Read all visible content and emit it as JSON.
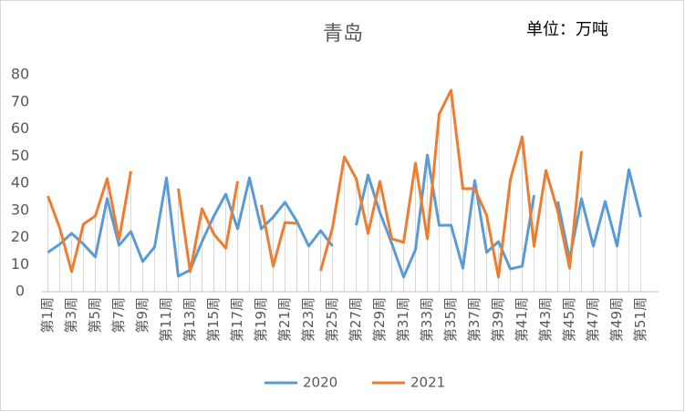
{
  "chart_data": {
    "type": "line",
    "title": "青岛",
    "annotation": "单位：万吨",
    "categories": [
      "第1周",
      null,
      "第3周",
      null,
      "第5周",
      null,
      "第7周",
      null,
      "第9周",
      null,
      "第11周",
      null,
      "第13周",
      null,
      "第15周",
      null,
      "第17周",
      null,
      "第19周",
      null,
      "第21周",
      null,
      "第23周",
      null,
      "第25周",
      null,
      "第27周",
      null,
      "第29周",
      null,
      "第31周",
      null,
      "第33周",
      null,
      "第35周",
      null,
      "第37周",
      null,
      "第39周",
      null,
      "第41周",
      null,
      "第43周",
      null,
      "第45周",
      null,
      "第47周",
      null,
      "第49周",
      null,
      "第51周",
      null
    ],
    "series": [
      {
        "name": "2020",
        "color": "#5b9bd5",
        "values": [
          14.5,
          17.5,
          21.5,
          17.5,
          12.8,
          34.3,
          17.1,
          22.2,
          11.1,
          16.5,
          42,
          5.7,
          8,
          18.5,
          27.9,
          36,
          23.2,
          42,
          23.2,
          27.5,
          33,
          25.9,
          16.8,
          22.5,
          16.8,
          null,
          24.5,
          43,
          29.2,
          17.8,
          5.4,
          15.5,
          50.4,
          24.5,
          24.5,
          8.7,
          41,
          14.5,
          18.5,
          8.4,
          9.4,
          35.6,
          null,
          33.3,
          12,
          34.3,
          16.8,
          33.3,
          16.8,
          45,
          27.5,
          null
        ]
      },
      {
        "name": "2021",
        "color": "#ed7d31",
        "values": [
          35.3,
          23.5,
          7.4,
          24.9,
          27.9,
          41.7,
          19.2,
          44.4,
          null,
          null,
          null,
          38,
          7.4,
          30.6,
          21.2,
          16.1,
          40.7,
          null,
          32,
          9.4,
          25.5,
          25.2,
          null,
          7.7,
          23.5,
          49.7,
          41.7,
          21.5,
          40.7,
          19.5,
          18.2,
          47.4,
          19.5,
          65.5,
          74.3,
          38,
          38,
          28.2,
          5.4,
          41.3,
          57.1,
          16.8,
          44.7,
          29.6,
          8.7,
          51.8,
          null,
          null,
          null,
          null,
          null,
          null
        ]
      }
    ],
    "ylim": [
      0,
      80
    ],
    "yticks": [
      0,
      10,
      20,
      30,
      40,
      50,
      60,
      70,
      80
    ],
    "legend": "bottom"
  }
}
